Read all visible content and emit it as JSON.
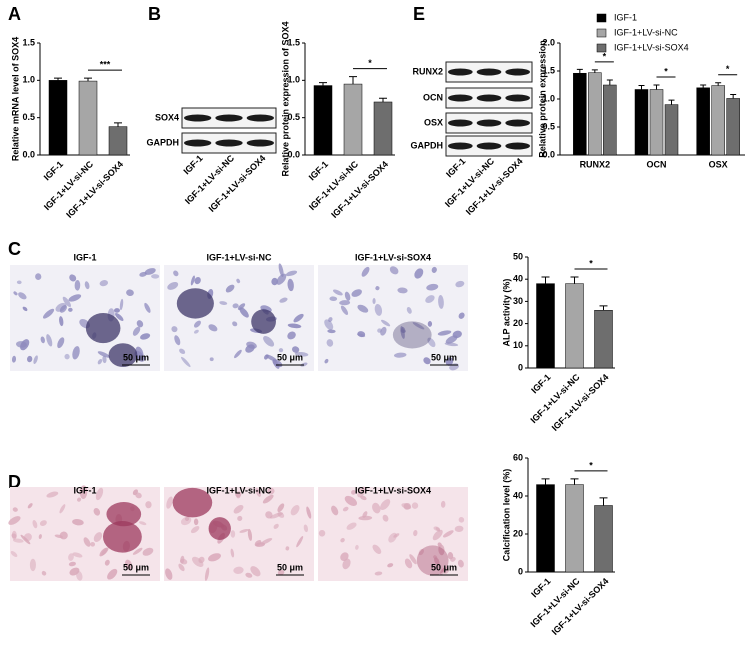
{
  "panel_labels": [
    "A",
    "B",
    "E",
    "C",
    "D"
  ],
  "blots": [
    {
      "rows": [
        "SOX4",
        "GAPDH"
      ],
      "lanes": [
        "IGF-1",
        "IGF-1+LV-si-NC",
        "IGF-1+LV-si-SOX4"
      ]
    },
    {
      "rows": [
        "RUNX2",
        "OCN",
        "OSX",
        "GAPDH"
      ],
      "lanes": [
        "IGF-1",
        "IGF-1+LV-si-NC",
        "IGF-1+LV-si-SOX4"
      ]
    }
  ],
  "micrographs": [
    {
      "titles": [
        "IGF-1",
        "IGF-1+LV-si-NC",
        "IGF-1+LV-si-SOX4"
      ],
      "scale_bar": "50 μm"
    },
    {
      "titles": [
        "IGF-1",
        "IGF-1+LV-si-NC",
        "IGF-1+LV-si-SOX4"
      ],
      "scale_bar": "50 μm"
    }
  ],
  "chart_data": [
    {
      "type": "bar",
      "ylabel": "Relative mRNA level of SOX4",
      "categories": [
        "IGF-1",
        "IGF-1+LV-si-NC",
        "IGF-1+LV-si-SOX4"
      ],
      "values": [
        1.0,
        0.99,
        0.38
      ],
      "errors": [
        0.03,
        0.04,
        0.05
      ],
      "colors": [
        "#000000",
        "#a6a6a6",
        "#6e6e6e"
      ],
      "ylim": [
        0,
        1.5
      ],
      "yticks": [
        {
          "value": 0,
          "label": "0.0"
        },
        0.5,
        {
          "value": 1,
          "label": "1.0"
        },
        1.5
      ],
      "annotations": [
        "***"
      ]
    },
    {
      "type": "bar",
      "ylabel": "Relative protein expression of SOX4",
      "categories": [
        "IGF-1",
        "IGF-1+LV-si-NC",
        "IGF-1+LV-si-SOX4"
      ],
      "values": [
        0.93,
        0.95,
        0.71
      ],
      "errors": [
        0.04,
        0.1,
        0.05
      ],
      "colors": [
        "#000000",
        "#a6a6a6",
        "#6e6e6e"
      ],
      "ylim": [
        0,
        1.5
      ],
      "yticks": [
        {
          "value": 0,
          "label": "0.0"
        },
        0.5,
        {
          "value": 1,
          "label": "1.0"
        },
        1.5
      ],
      "annotations": [
        "*"
      ]
    },
    {
      "type": "grouped_bar",
      "ylabel": "Relative protein expression",
      "categories": [
        "RUNX2",
        "OCN",
        "OSX"
      ],
      "series": [
        {
          "name": "IGF-1",
          "color": "#000000",
          "values": [
            1.46,
            1.17,
            1.2
          ],
          "errors": [
            0.07,
            0.07,
            0.05
          ]
        },
        {
          "name": "IGF-1+LV-si-NC",
          "color": "#a6a6a6",
          "values": [
            1.47,
            1.17,
            1.24
          ],
          "errors": [
            0.05,
            0.08,
            0.05
          ]
        },
        {
          "name": "IGF-1+LV-si-SOX4",
          "color": "#6e6e6e",
          "values": [
            1.25,
            0.9,
            1.01
          ],
          "errors": [
            0.09,
            0.08,
            0.07
          ]
        }
      ],
      "ylim": [
        0,
        2
      ],
      "yticks": [
        {
          "value": 0,
          "label": "0.0"
        },
        0.5,
        {
          "value": 1,
          "label": "1.0"
        },
        1.5,
        {
          "value": 2,
          "label": "2.0"
        }
      ],
      "annotations": [
        "*",
        "*",
        "*"
      ]
    },
    {
      "type": "bar",
      "ylabel": "ALP activity (%)",
      "categories": [
        "IGF-1",
        "IGF-1+LV-si-NC",
        "IGF-1+LV-si-SOX4"
      ],
      "values": [
        38,
        38,
        26
      ],
      "errors": [
        3,
        3,
        2
      ],
      "colors": [
        "#000000",
        "#a6a6a6",
        "#6e6e6e"
      ],
      "ylim": [
        0,
        50
      ],
      "yticks": [
        0,
        10,
        20,
        30,
        40,
        50
      ],
      "annotations": [
        "*"
      ]
    },
    {
      "type": "bar",
      "ylabel": "Calcification level (%)",
      "categories": [
        "IGF-1",
        "IGF-1+LV-si-NC",
        "IGF-1+LV-si-SOX4"
      ],
      "values": [
        46,
        46,
        35
      ],
      "errors": [
        3,
        3,
        4
      ],
      "colors": [
        "#000000",
        "#a6a6a6",
        "#6e6e6e"
      ],
      "ylim": [
        0,
        60
      ],
      "yticks": [
        0,
        20,
        40,
        60
      ],
      "annotations": [
        "*"
      ]
    }
  ]
}
